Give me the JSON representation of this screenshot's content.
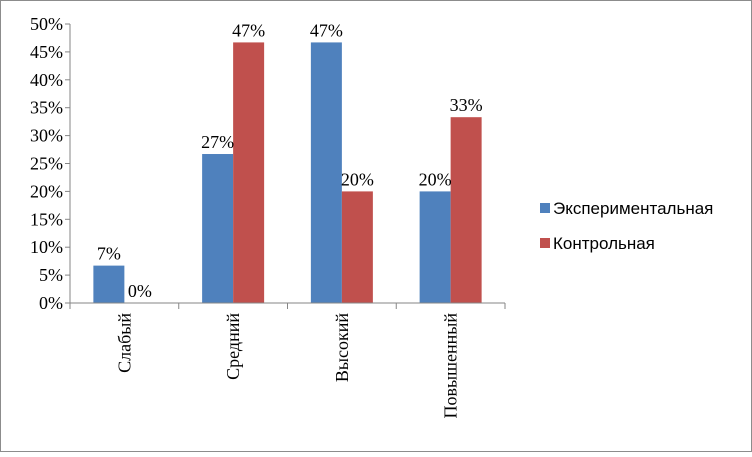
{
  "chart_data": {
    "type": "bar",
    "categories": [
      "Слабый",
      "Средний",
      "Высокий",
      "Повышенный"
    ],
    "series": [
      {
        "name": "Экспериментальная",
        "color": "#4F81BD",
        "values": [
          6.7,
          26.7,
          46.7,
          20
        ],
        "labels": [
          "7%",
          "27%",
          "47%",
          "20%"
        ]
      },
      {
        "name": "Контрольная",
        "color": "#C0504D",
        "values": [
          0,
          46.7,
          20,
          33.3
        ],
        "labels": [
          "0%",
          "47%",
          "20%",
          "33%"
        ]
      }
    ],
    "y_ticks": [
      "0%",
      "5%",
      "10%",
      "15%",
      "20%",
      "25%",
      "30%",
      "35%",
      "40%",
      "45%",
      "50%"
    ],
    "ylim": [
      0,
      50
    ],
    "grid": false,
    "legend_position": "right",
    "title": "",
    "xlabel": "",
    "ylabel": ""
  }
}
